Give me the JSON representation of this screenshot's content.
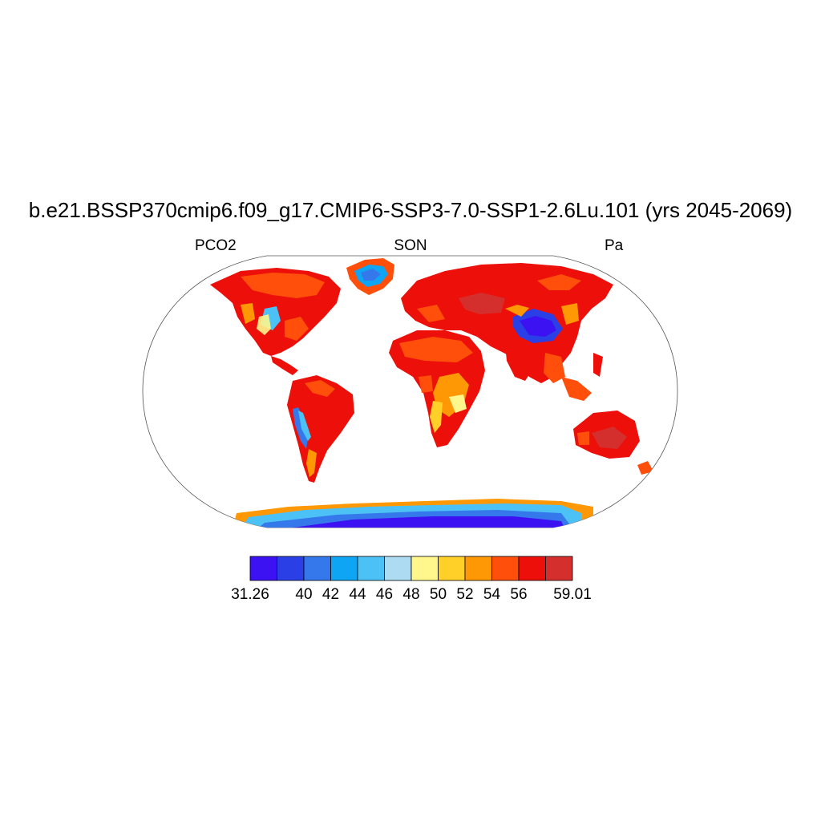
{
  "title": "b.e21.BSSP370cmip6.f09_g17.CMIP6-SSP3-7.0-SSP1-2.6Lu.101 (yrs 2045-2069)",
  "left_label": "PCO2",
  "center_label": "SON",
  "right_label": "Pa",
  "colorbar": {
    "colors": [
      "#3d12f2",
      "#2a3fe6",
      "#3578eb",
      "#0ea5f5",
      "#4cc1f5",
      "#acdbf2",
      "#fff68c",
      "#ffd027",
      "#ff9804",
      "#ff4f0a",
      "#ec0f0a",
      "#d42f2d"
    ],
    "labels": [
      "31.26",
      "40",
      "42",
      "44",
      "46",
      "48",
      "50",
      "52",
      "54",
      "56",
      "59.01"
    ],
    "label_positions": [
      0,
      2,
      3,
      4,
      5,
      6,
      7,
      8,
      9,
      10,
      12
    ]
  }
}
